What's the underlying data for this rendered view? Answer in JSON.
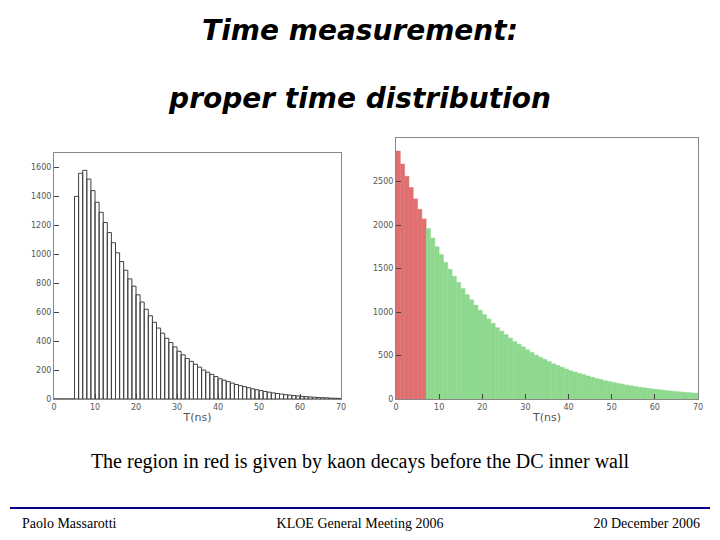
{
  "slide": {
    "title": [
      "Time measurement:",
      "proper time distribution"
    ],
    "caption": "The region in red is given by kaon decays before the DC inner wall",
    "footer": [
      "Paolo Massarotti",
      "KLOE General Meeting 2006",
      "20 December 2006"
    ]
  },
  "chart_data": [
    {
      "type": "histogram",
      "x_label": "T(ns)",
      "color": "#404040",
      "grid": false,
      "bins": [
        0,
        1,
        2,
        3,
        4,
        5,
        6,
        7,
        8,
        9,
        10,
        11,
        12,
        13,
        14,
        15,
        16,
        17,
        18,
        19,
        20,
        21,
        22,
        23,
        24,
        25,
        26,
        27,
        28,
        29,
        30,
        31,
        32,
        33,
        34,
        35,
        36,
        37,
        38,
        39,
        40,
        41,
        42,
        43,
        44,
        45,
        46,
        47,
        48,
        49,
        50,
        51,
        52,
        53,
        54,
        55,
        56,
        57,
        58,
        59,
        60,
        61,
        62,
        63,
        64,
        65,
        66,
        67,
        68,
        69,
        70
      ],
      "values": [
        0,
        0,
        0,
        0,
        0,
        1400,
        1560,
        1580,
        1520,
        1440,
        1360,
        1290,
        1220,
        1150,
        1080,
        1010,
        950,
        890,
        830,
        780,
        720,
        670,
        620,
        575,
        530,
        490,
        455,
        420,
        390,
        360,
        330,
        305,
        280,
        260,
        240,
        220,
        200,
        185,
        170,
        155,
        140,
        130,
        120,
        110,
        100,
        92,
        85,
        78,
        70,
        64,
        58,
        52,
        47,
        42,
        38,
        34,
        30,
        27,
        24,
        21,
        18,
        16,
        14,
        12,
        10,
        9,
        8,
        6,
        5,
        4
      ],
      "xlim": [
        0,
        70
      ],
      "xticks": [
        0,
        10,
        20,
        30,
        40,
        50,
        60,
        70
      ],
      "ylim": [
        0,
        1700
      ],
      "yticks": [
        0,
        200,
        400,
        600,
        800,
        1000,
        1200,
        1400,
        1600
      ]
    },
    {
      "type": "histogram",
      "x_label": "T(ns)",
      "grid": false,
      "bins": [
        0,
        1,
        2,
        3,
        4,
        5,
        6,
        7,
        8,
        9,
        10,
        11,
        12,
        13,
        14,
        15,
        16,
        17,
        18,
        19,
        20,
        21,
        22,
        23,
        24,
        25,
        26,
        27,
        28,
        29,
        30,
        31,
        32,
        33,
        34,
        35,
        36,
        37,
        38,
        39,
        40,
        41,
        42,
        43,
        44,
        45,
        46,
        47,
        48,
        49,
        50,
        51,
        52,
        53,
        54,
        55,
        56,
        57,
        58,
        59,
        60,
        61,
        62,
        63,
        64,
        65,
        66,
        67,
        68,
        69,
        70
      ],
      "values": [
        2850,
        2700,
        2560,
        2430,
        2300,
        2180,
        2070,
        1960,
        1850,
        1750,
        1660,
        1570,
        1490,
        1410,
        1340,
        1270,
        1200,
        1140,
        1080,
        1020,
        970,
        920,
        870,
        820,
        780,
        740,
        700,
        660,
        630,
        600,
        565,
        535,
        505,
        480,
        455,
        430,
        405,
        385,
        365,
        345,
        325,
        310,
        295,
        280,
        265,
        250,
        235,
        225,
        210,
        200,
        190,
        180,
        170,
        160,
        152,
        144,
        136,
        129,
        122,
        116,
        110,
        104,
        98,
        93,
        88,
        83,
        79,
        75,
        71,
        67
      ],
      "colors": [
        "#e07070",
        "#e07070",
        "#e07070",
        "#e07070",
        "#e07070",
        "#e07070",
        "#e07070",
        "#8fd88f",
        "#8fd88f",
        "#8fd88f",
        "#8fd88f",
        "#8fd88f",
        "#8fd88f",
        "#8fd88f",
        "#8fd88f",
        "#8fd88f",
        "#8fd88f",
        "#8fd88f",
        "#8fd88f",
        "#8fd88f",
        "#8fd88f",
        "#8fd88f",
        "#8fd88f",
        "#8fd88f",
        "#8fd88f",
        "#8fd88f",
        "#8fd88f",
        "#8fd88f",
        "#8fd88f",
        "#8fd88f",
        "#8fd88f",
        "#8fd88f",
        "#8fd88f",
        "#8fd88f",
        "#8fd88f",
        "#8fd88f",
        "#8fd88f",
        "#8fd88f",
        "#8fd88f",
        "#8fd88f",
        "#8fd88f",
        "#8fd88f",
        "#8fd88f",
        "#8fd88f",
        "#8fd88f",
        "#8fd88f",
        "#8fd88f",
        "#8fd88f",
        "#8fd88f",
        "#8fd88f",
        "#8fd88f",
        "#8fd88f",
        "#8fd88f",
        "#8fd88f",
        "#8fd88f",
        "#8fd88f",
        "#8fd88f",
        "#8fd88f",
        "#8fd88f",
        "#8fd88f",
        "#8fd88f",
        "#8fd88f",
        "#8fd88f",
        "#8fd88f",
        "#8fd88f",
        "#8fd88f",
        "#8fd88f",
        "#8fd88f",
        "#8fd88f",
        "#8fd88f"
      ],
      "xlim": [
        0,
        70
      ],
      "xticks": [
        0,
        10,
        20,
        30,
        40,
        50,
        60,
        70
      ],
      "ylim": [
        0,
        3000
      ],
      "yticks": [
        0,
        500,
        1000,
        1500,
        2000,
        2500
      ]
    }
  ]
}
